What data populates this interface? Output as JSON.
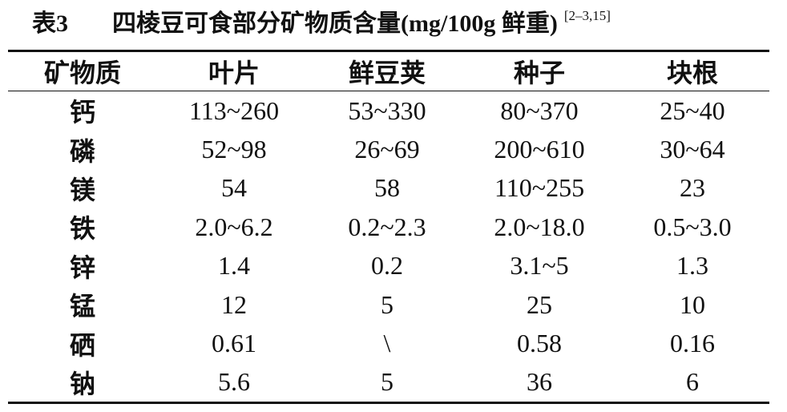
{
  "title": {
    "label": "表3",
    "text": "四棱豆可食部分矿物质含量(mg/100g 鲜重)",
    "ref": "[2–3,15]"
  },
  "table": {
    "header": [
      "矿物质",
      "叶片",
      "鲜豆荚",
      "种子",
      "块根"
    ],
    "rows": [
      [
        "钙",
        "113~260",
        "53~330",
        "80~370",
        "25~40"
      ],
      [
        "磷",
        "52~98",
        "26~69",
        "200~610",
        "30~64"
      ],
      [
        "镁",
        "54",
        "58",
        "110~255",
        "23"
      ],
      [
        "铁",
        "2.0~6.2",
        "0.2~2.3",
        "2.0~18.0",
        "0.5~3.0"
      ],
      [
        "锌",
        "1.4",
        "0.2",
        "3.1~5",
        "1.3"
      ],
      [
        "锰",
        "12",
        "5",
        "25",
        "10"
      ],
      [
        "硒",
        "0.61",
        "\\",
        "0.58",
        "0.16"
      ],
      [
        "钠",
        "5.6",
        "5",
        "36",
        "6"
      ]
    ]
  }
}
